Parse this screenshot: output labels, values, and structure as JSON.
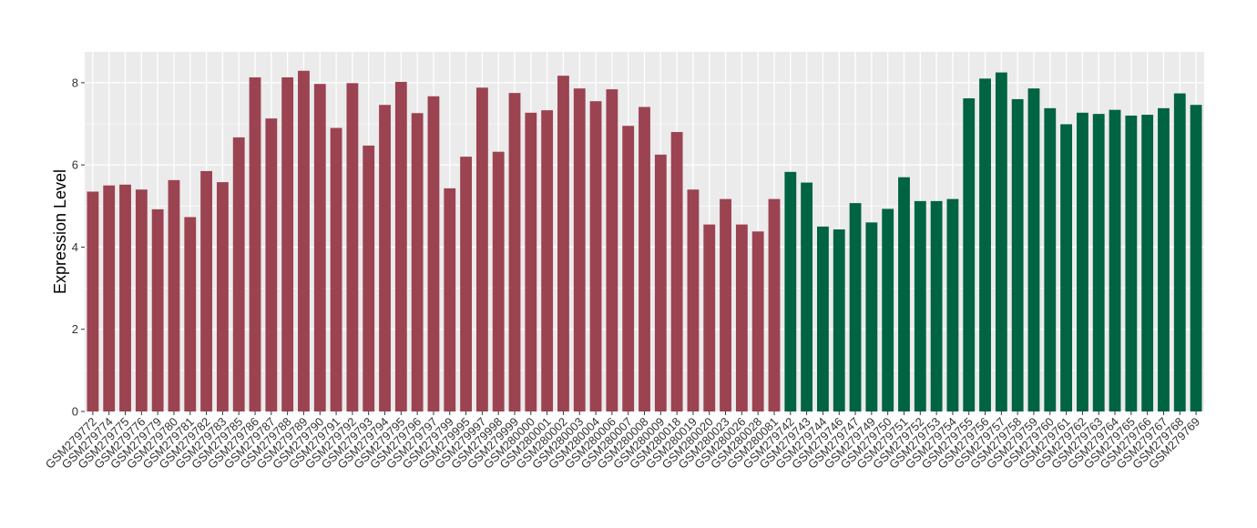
{
  "chart_data": {
    "type": "bar",
    "title": "",
    "xlabel": "",
    "ylabel": "Expression Level",
    "ylim": [
      0,
      8.75
    ],
    "y_ticks": [
      "0",
      "2",
      "4",
      "6",
      "8"
    ],
    "grid": true,
    "legend": "none",
    "colors": {
      "group_1": "#9b4351",
      "group_2": "#006341",
      "panel": "#ebebeb",
      "gridline": "#ffffff"
    },
    "categories": [
      "GSM279772",
      "GSM279774",
      "GSM279775",
      "GSM279776",
      "GSM279779",
      "GSM279780",
      "GSM279781",
      "GSM279782",
      "GSM279783",
      "GSM279785",
      "GSM279786",
      "GSM279787",
      "GSM279788",
      "GSM279789",
      "GSM279790",
      "GSM279791",
      "GSM279792",
      "GSM279793",
      "GSM279794",
      "GSM279795",
      "GSM279796",
      "GSM279797",
      "GSM279799",
      "GSM279995",
      "GSM279997",
      "GSM279998",
      "GSM279999",
      "GSM280000",
      "GSM280001",
      "GSM280002",
      "GSM280003",
      "GSM280004",
      "GSM280006",
      "GSM280007",
      "GSM280008",
      "GSM280009",
      "GSM280018",
      "GSM280019",
      "GSM280020",
      "GSM280023",
      "GSM280026",
      "GSM280028",
      "GSM280081",
      "GSM279742",
      "GSM279743",
      "GSM279744",
      "GSM279746",
      "GSM279747",
      "GSM279749",
      "GSM279750",
      "GSM279751",
      "GSM279752",
      "GSM279753",
      "GSM279754",
      "GSM279755",
      "GSM279756",
      "GSM279757",
      "GSM279758",
      "GSM279759",
      "GSM279760",
      "GSM279761",
      "GSM279762",
      "GSM279763",
      "GSM279764",
      "GSM279765",
      "GSM279766",
      "GSM279767",
      "GSM279768",
      "GSM279769"
    ],
    "values": [
      5.35,
      5.5,
      5.52,
      5.4,
      4.92,
      5.63,
      4.73,
      5.85,
      5.58,
      6.67,
      8.13,
      7.13,
      8.13,
      8.29,
      7.97,
      6.9,
      7.99,
      6.47,
      7.46,
      8.02,
      7.26,
      7.67,
      5.43,
      6.2,
      7.88,
      6.32,
      7.75,
      7.27,
      7.33,
      8.17,
      7.86,
      7.55,
      7.84,
      6.95,
      7.41,
      6.25,
      6.8,
      5.4,
      4.55,
      5.17,
      4.55,
      4.38,
      5.17,
      5.83,
      5.57,
      4.5,
      4.43,
      5.07,
      4.6,
      4.93,
      5.7,
      5.12,
      5.12,
      5.17,
      7.62,
      8.1,
      8.25,
      7.6,
      7.86,
      7.38,
      6.99,
      7.27,
      7.24,
      7.34,
      7.2,
      7.22,
      7.38,
      7.74,
      7.46
    ],
    "groups": [
      1,
      1,
      1,
      1,
      1,
      1,
      1,
      1,
      1,
      1,
      1,
      1,
      1,
      1,
      1,
      1,
      1,
      1,
      1,
      1,
      1,
      1,
      1,
      1,
      1,
      1,
      1,
      1,
      1,
      1,
      1,
      1,
      1,
      1,
      1,
      1,
      1,
      1,
      1,
      1,
      1,
      1,
      1,
      2,
      2,
      2,
      2,
      2,
      2,
      2,
      2,
      2,
      2,
      2,
      2,
      2,
      2,
      2,
      2,
      2,
      2,
      2,
      2,
      2,
      2,
      2,
      2,
      2,
      2
    ]
  }
}
